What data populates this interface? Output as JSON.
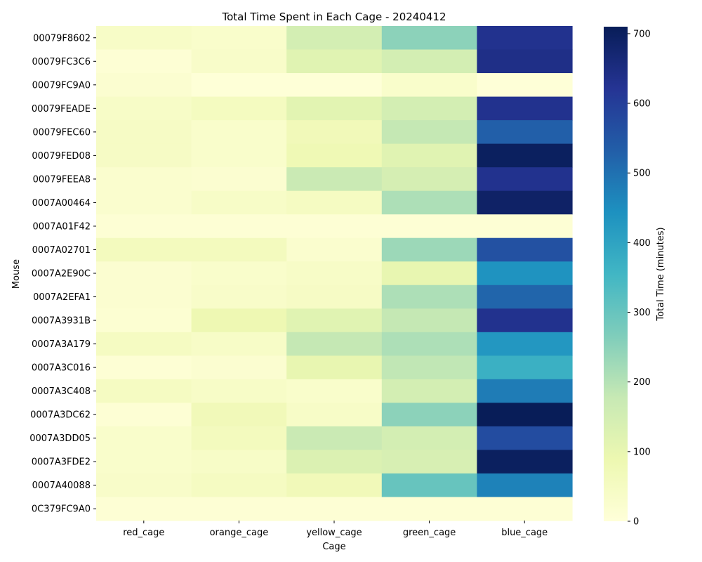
{
  "chart_data": {
    "type": "heatmap",
    "title": "Total Time Spent in Each Cage - 20240412",
    "xlabel": "Cage",
    "ylabel": "Mouse",
    "colorbar_label": "Total Time (minutes)",
    "colormap": "YlGnBu",
    "vmin": 0,
    "vmax": 710,
    "colorbar_ticks": [
      0,
      100,
      200,
      300,
      400,
      500,
      600,
      700
    ],
    "columns": [
      "red_cage",
      "orange_cage",
      "yellow_cage",
      "green_cage",
      "blue_cage"
    ],
    "rows": [
      "00079F8602",
      "00079FC3C6",
      "00079FC9A0",
      "00079FEADE",
      "00079FEC60",
      "00079FED08",
      "00079FEEA8",
      "0007A00464",
      "0007A01F42",
      "0007A02701",
      "0007A2E90C",
      "0007A2EFA1",
      "0007A3931B",
      "0007A3A179",
      "0007A3C016",
      "0007A3C408",
      "0007A3DC62",
      "0007A3DD05",
      "0007A3FDE2",
      "0007A40088",
      "0C379FC9A0"
    ],
    "values": [
      [
        40,
        30,
        150,
        250,
        630
      ],
      [
        12,
        35,
        120,
        150,
        640
      ],
      [
        20,
        5,
        5,
        30,
        5
      ],
      [
        40,
        55,
        115,
        150,
        630
      ],
      [
        45,
        30,
        70,
        180,
        530
      ],
      [
        45,
        30,
        80,
        120,
        700
      ],
      [
        25,
        20,
        170,
        145,
        630
      ],
      [
        25,
        40,
        50,
        210,
        690
      ],
      [
        10,
        10,
        10,
        10,
        10
      ],
      [
        60,
        60,
        25,
        230,
        560
      ],
      [
        20,
        30,
        40,
        100,
        440
      ],
      [
        20,
        35,
        45,
        210,
        520
      ],
      [
        15,
        85,
        120,
        180,
        630
      ],
      [
        50,
        40,
        180,
        210,
        430
      ],
      [
        10,
        20,
        100,
        185,
        370
      ],
      [
        50,
        40,
        30,
        150,
        480
      ],
      [
        10,
        70,
        40,
        250,
        710
      ],
      [
        30,
        60,
        170,
        150,
        570
      ],
      [
        30,
        40,
        130,
        140,
        700
      ],
      [
        35,
        50,
        70,
        300,
        470
      ],
      [
        10,
        10,
        10,
        10,
        10
      ]
    ]
  }
}
